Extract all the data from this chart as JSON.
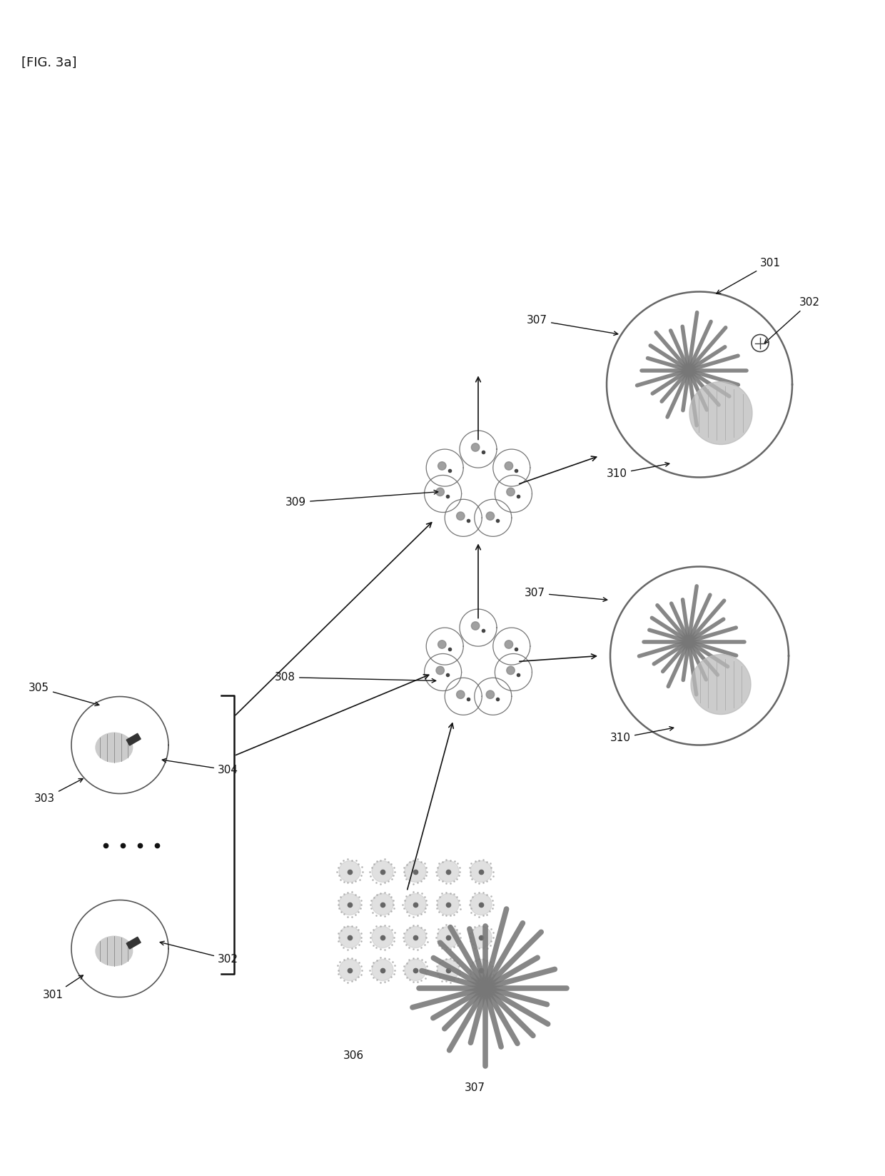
{
  "title": "[FIG. 3a]",
  "bg_color": "#ffffff",
  "label_color": "#111111",
  "label_fontsize": 11,
  "title_fontsize": 13
}
